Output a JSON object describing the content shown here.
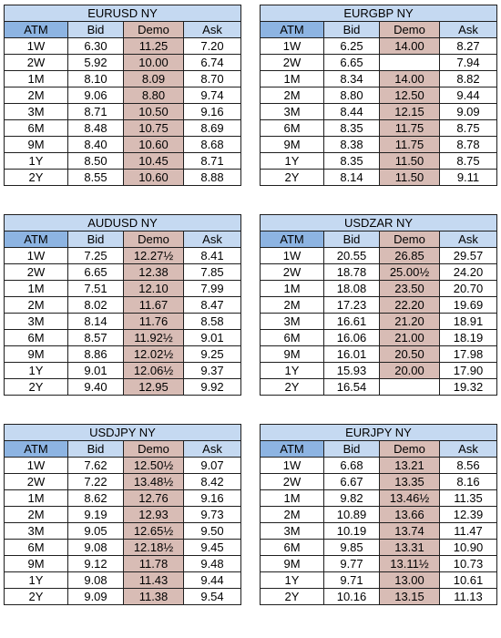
{
  "columns": [
    "ATM",
    "Bid",
    "Demo",
    "Ask"
  ],
  "tables": [
    {
      "title": "EURUSD NY",
      "rows": [
        [
          "1W",
          "6.30",
          "11.25",
          "7.20"
        ],
        [
          "2W",
          "5.92",
          "10.00",
          "6.74"
        ],
        [
          "1M",
          "8.10",
          "8.09",
          "8.70"
        ],
        [
          "2M",
          "9.06",
          "8.80",
          "9.74"
        ],
        [
          "3M",
          "8.71",
          "10.50",
          "9.16"
        ],
        [
          "6M",
          "8.48",
          "10.75",
          "8.69"
        ],
        [
          "9M",
          "8.40",
          "10.60",
          "8.68"
        ],
        [
          "1Y",
          "8.50",
          "10.45",
          "8.71"
        ],
        [
          "2Y",
          "8.55",
          "10.60",
          "8.88"
        ]
      ]
    },
    {
      "title": "EURGBP NY",
      "rows": [
        [
          "1W",
          "6.25",
          "14.00",
          "8.27"
        ],
        [
          "2W",
          "6.65",
          "",
          "7.94"
        ],
        [
          "1M",
          "8.34",
          "14.00",
          "8.82"
        ],
        [
          "2M",
          "8.80",
          "12.50",
          "9.44"
        ],
        [
          "3M",
          "8.44",
          "12.15",
          "9.09"
        ],
        [
          "6M",
          "8.35",
          "11.75",
          "8.75"
        ],
        [
          "9M",
          "8.38",
          "11.75",
          "8.78"
        ],
        [
          "1Y",
          "8.35",
          "11.50",
          "8.75"
        ],
        [
          "2Y",
          "8.14",
          "11.50",
          "9.11"
        ]
      ]
    },
    {
      "title": "AUDUSD NY",
      "rows": [
        [
          "1W",
          "7.25",
          "12.27½",
          "8.41"
        ],
        [
          "2W",
          "6.65",
          "12.38",
          "7.85"
        ],
        [
          "1M",
          "7.51",
          "12.10",
          "7.99"
        ],
        [
          "2M",
          "8.02",
          "11.67",
          "8.47"
        ],
        [
          "3M",
          "8.14",
          "11.76",
          "8.58"
        ],
        [
          "6M",
          "8.57",
          "11.92½",
          "9.01"
        ],
        [
          "9M",
          "8.86",
          "12.02½",
          "9.25"
        ],
        [
          "1Y",
          "9.01",
          "12.06½",
          "9.37"
        ],
        [
          "2Y",
          "9.40",
          "12.95",
          "9.92"
        ]
      ]
    },
    {
      "title": "USDZAR NY",
      "rows": [
        [
          "1W",
          "20.55",
          "26.85",
          "29.57"
        ],
        [
          "2W",
          "18.78",
          "25.00½",
          "24.20"
        ],
        [
          "1M",
          "18.08",
          "23.50",
          "20.70"
        ],
        [
          "2M",
          "17.23",
          "22.20",
          "19.69"
        ],
        [
          "3M",
          "16.61",
          "21.20",
          "18.91"
        ],
        [
          "6M",
          "16.06",
          "21.00",
          "18.19"
        ],
        [
          "9M",
          "16.01",
          "20.50",
          "17.98"
        ],
        [
          "1Y",
          "15.93",
          "20.00",
          "17.90"
        ],
        [
          "2Y",
          "16.54",
          "",
          "19.32"
        ]
      ]
    },
    {
      "title": "USDJPY NY",
      "rows": [
        [
          "1W",
          "7.62",
          "12.50½",
          "9.07"
        ],
        [
          "2W",
          "7.22",
          "13.48½",
          "8.42"
        ],
        [
          "1M",
          "8.62",
          "12.76",
          "9.16"
        ],
        [
          "2M",
          "9.19",
          "12.93",
          "9.73"
        ],
        [
          "3M",
          "9.05",
          "12.65½",
          "9.50"
        ],
        [
          "6M",
          "9.08",
          "12.18½",
          "9.45"
        ],
        [
          "9M",
          "9.12",
          "11.78",
          "9.48"
        ],
        [
          "1Y",
          "9.08",
          "11.43",
          "9.44"
        ],
        [
          "2Y",
          "9.09",
          "11.38",
          "9.54"
        ]
      ]
    },
    {
      "title": "EURJPY NY",
      "rows": [
        [
          "1W",
          "6.68",
          "13.21",
          "8.56"
        ],
        [
          "2W",
          "6.67",
          "13.35",
          "8.16"
        ],
        [
          "1M",
          "9.82",
          "13.46½",
          "11.35"
        ],
        [
          "2M",
          "10.89",
          "13.66",
          "12.39"
        ],
        [
          "3M",
          "10.19",
          "13.74",
          "11.47"
        ],
        [
          "6M",
          "9.85",
          "13.31",
          "10.90"
        ],
        [
          "9M",
          "9.77",
          "13.11½",
          "10.73"
        ],
        [
          "1Y",
          "9.71",
          "13.00",
          "10.61"
        ],
        [
          "2Y",
          "10.16",
          "13.15",
          "11.13"
        ]
      ]
    }
  ]
}
